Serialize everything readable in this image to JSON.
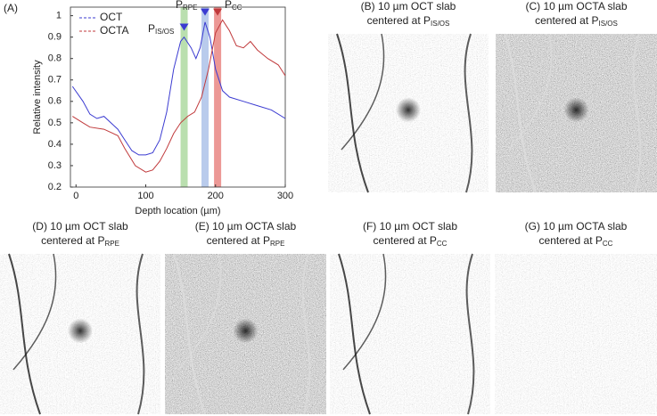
{
  "chart_data": {
    "type": "line",
    "panel_label": "(A)",
    "xlabel": "Depth location (µm)",
    "ylabel": "Relative intensity",
    "xlim": [
      -8,
      300
    ],
    "xticks": [
      0,
      100,
      200,
      300
    ],
    "ylim": [
      0.2,
      1.04
    ],
    "yticks": [
      0.2,
      0.3,
      0.4,
      0.5,
      0.6,
      0.7,
      0.8,
      0.9,
      1
    ],
    "legend": "upper left",
    "series": [
      {
        "name": "OCT",
        "color": "#3b3bd1",
        "x": [
          -5,
          10,
          20,
          30,
          40,
          50,
          60,
          70,
          80,
          90,
          100,
          110,
          120,
          130,
          140,
          150,
          155,
          165,
          172,
          178,
          185,
          192,
          200,
          210,
          220,
          240,
          260,
          280,
          300
        ],
        "values": [
          0.67,
          0.6,
          0.54,
          0.52,
          0.53,
          0.5,
          0.47,
          0.42,
          0.37,
          0.35,
          0.35,
          0.36,
          0.42,
          0.55,
          0.75,
          0.88,
          0.9,
          0.85,
          0.8,
          0.85,
          0.97,
          0.9,
          0.75,
          0.65,
          0.62,
          0.6,
          0.58,
          0.56,
          0.52
        ]
      },
      {
        "name": "OCTA",
        "color": "#c0393b",
        "x": [
          -5,
          10,
          20,
          40,
          60,
          70,
          85,
          100,
          110,
          120,
          130,
          140,
          150,
          160,
          170,
          180,
          190,
          200,
          210,
          220,
          230,
          240,
          250,
          260,
          275,
          290,
          300
        ],
        "values": [
          0.53,
          0.5,
          0.48,
          0.47,
          0.44,
          0.38,
          0.3,
          0.27,
          0.28,
          0.32,
          0.38,
          0.45,
          0.5,
          0.53,
          0.55,
          0.62,
          0.75,
          0.92,
          0.98,
          0.93,
          0.86,
          0.85,
          0.88,
          0.84,
          0.8,
          0.77,
          0.72
        ]
      }
    ],
    "annotations": [
      {
        "label": "P",
        "sub": "IS/OS",
        "x": 155,
        "y": 0.93,
        "band_color": "#8cc97a",
        "marker_color": "#3b3bd1"
      },
      {
        "label": "P",
        "sub": "RPE",
        "x": 185,
        "y": 1,
        "band_color": "#8aa8e0",
        "marker_color": "#3b3bd1"
      },
      {
        "label": "P",
        "sub": "CC",
        "x": 203,
        "y": 1,
        "band_color": "#e0534f",
        "marker_color": "#c0393b"
      }
    ]
  },
  "panels": [
    {
      "line1": "(B) 10 µm OCT slab",
      "line2": "centered at P",
      "sub": "IS/OS"
    },
    {
      "line1": "(C) 10 µm OCTA slab",
      "line2": "centered at P",
      "sub": "IS/OS"
    },
    {
      "line1": "(D) 10 µm OCT slab",
      "line2": "centered at P",
      "sub": "RPE"
    },
    {
      "line1": "(E) 10 µm OCTA slab",
      "line2": "centered at P",
      "sub": "RPE"
    },
    {
      "line1": "(F) 10 µm OCT slab",
      "line2": "centered at P",
      "sub": "CC"
    },
    {
      "line1": "(G) 10 µm OCTA slab",
      "line2": "centered at P",
      "sub": "CC"
    }
  ]
}
